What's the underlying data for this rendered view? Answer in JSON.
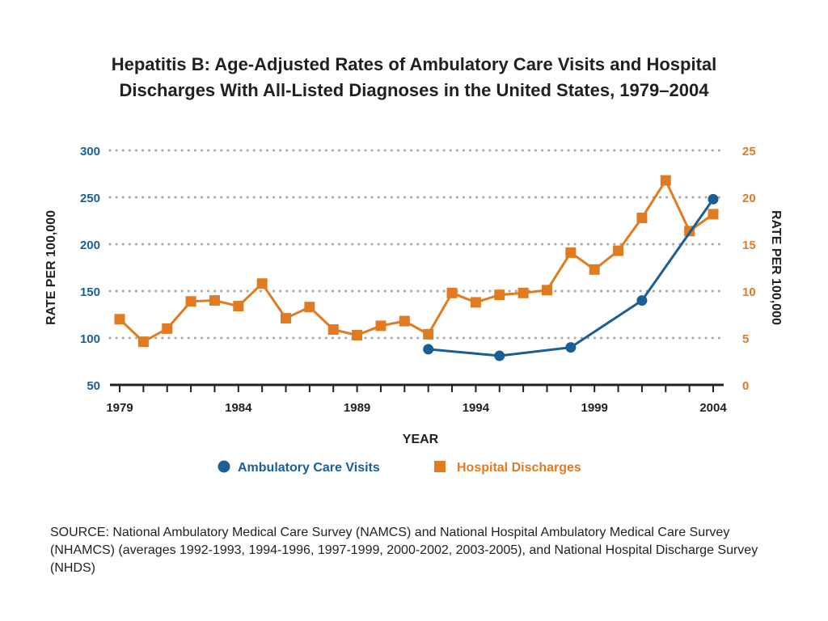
{
  "title_line1": "Hepatitis B:  Age-Adjusted Rates of Ambulatory Care Visits and Hospital",
  "title_line2": "Discharges With All-Listed Diagnoses in the United States, 1979–2004",
  "source_note": "SOURCE: National Ambulatory Medical Care Survey (NAMCS) and National Hospital Ambulatory Medical Care Survey (NHAMCS) (averages 1992-1993, 1994-1996, 1997-1999, 2000-2002, 2003-2005), and National Hospital Discharge Survey (NHDS)",
  "chart_data": {
    "type": "line",
    "xlabel": "YEAR",
    "ylabel_left": "RATE PER 100,000",
    "ylabel_right": "RATE PER 100,000",
    "xlim": [
      1979,
      2004
    ],
    "ylim_left": [
      50,
      300
    ],
    "ylim_right": [
      0,
      25
    ],
    "x_ticks": [
      "1979",
      "1984",
      "1989",
      "1994",
      "1999",
      "2004"
    ],
    "y_ticks_left": [
      "50",
      "100",
      "150",
      "200",
      "250",
      "300"
    ],
    "y_ticks_right": [
      "0",
      "5",
      "10",
      "15",
      "20",
      "25"
    ],
    "grid": "horizontal dotted",
    "legend_position": "bottom",
    "series": [
      {
        "name": "Ambulatory Care Visits",
        "axis": "left",
        "color": "#1a5e96",
        "marker": "circle",
        "x": [
          1992,
          1995,
          1998,
          2001,
          2004
        ],
        "y": [
          88,
          81,
          90,
          140,
          248
        ]
      },
      {
        "name": "Hospital Discharges",
        "axis": "right",
        "color": "#e07b22",
        "marker": "square",
        "x": [
          1979,
          1980,
          1981,
          1982,
          1983,
          1984,
          1985,
          1986,
          1987,
          1988,
          1989,
          1990,
          1991,
          1992,
          1993,
          1994,
          1995,
          1996,
          1997,
          1998,
          1999,
          2000,
          2001,
          2002,
          2003,
          2004
        ],
        "y": [
          7.0,
          4.6,
          6.0,
          8.9,
          9.0,
          8.4,
          10.8,
          7.1,
          8.3,
          5.9,
          5.3,
          6.3,
          6.8,
          5.4,
          9.8,
          8.8,
          9.6,
          9.8,
          10.1,
          14.1,
          12.3,
          14.3,
          17.8,
          21.8,
          16.4,
          18.2
        ]
      }
    ]
  }
}
